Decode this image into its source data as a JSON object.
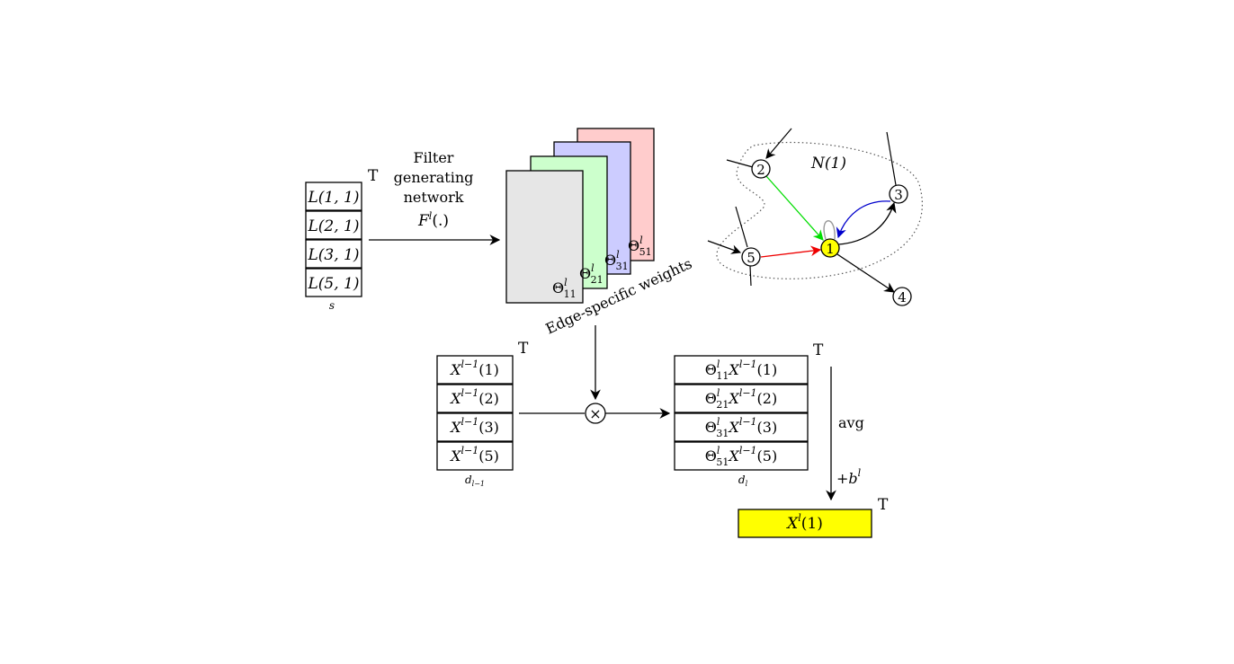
{
  "transpose_mark": "T",
  "edge_labels": {
    "title": "",
    "items": [
      {
        "text": "L(1, 1)",
        "color": "#909090"
      },
      {
        "text": "L(2, 1)",
        "color": "#00dd00"
      },
      {
        "text": "L(3, 1)",
        "color": "#0000ee"
      },
      {
        "text": "L(5, 1)",
        "color": "#ee0000"
      }
    ],
    "dim_label": "s"
  },
  "filter_network": {
    "line1": "Filter",
    "line2": "generating",
    "line3": "network",
    "line4": "F^l(.)"
  },
  "weight_stack": {
    "sheets": [
      {
        "label": "Θ51",
        "color": "#ffcccc"
      },
      {
        "label": "Θ31",
        "color": "#ccccff"
      },
      {
        "label": "Θ21",
        "color": "#ccffcc"
      },
      {
        "label": "Θ11",
        "color": "#e6e6e6"
      }
    ],
    "caption": "Edge-specific weights"
  },
  "graph": {
    "neighborhood_label": "N(1)",
    "nodes": [
      {
        "id": "1",
        "highlight": "#ffff00"
      },
      {
        "id": "2"
      },
      {
        "id": "3"
      },
      {
        "id": "4"
      },
      {
        "id": "5"
      }
    ],
    "edge_colors": {
      "e21": "#00dd00",
      "e31": "#0000cc",
      "e51": "#ee0000",
      "self": "#999999"
    }
  },
  "input_features": {
    "items": [
      "X^{l-1}(1)",
      "X^{l-1}(2)",
      "X^{l-1}(3)",
      "X^{l-1}(5)"
    ],
    "dim_label": "d_{l-1}"
  },
  "multiply_symbol": "×",
  "weighted_features": {
    "items": [
      "Θ11 X^{l-1}(1)",
      "Θ21 X^{l-1}(2)",
      "Θ31 X^{l-1}(3)",
      "Θ51 X^{l-1}(5)"
    ],
    "dim_label": "d_l"
  },
  "aggregation": {
    "op": "avg",
    "bias": "+b^l"
  },
  "output": {
    "label": "X^l(1)",
    "color": "#ffff00"
  }
}
